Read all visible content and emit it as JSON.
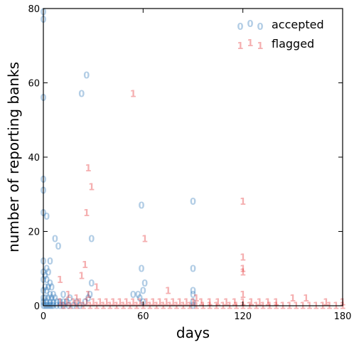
{
  "chart_data": {
    "type": "scatter",
    "xlabel": "days",
    "ylabel": "number of reporting banks",
    "xlim": [
      0,
      180
    ],
    "ylim": [
      0,
      80
    ],
    "xticks": [
      "0",
      "60",
      "120",
      "180"
    ],
    "yticks": [
      "0",
      "20",
      "40",
      "60",
      "80"
    ],
    "grid": false,
    "legend_position": "top-right",
    "series": [
      {
        "name": "accepted",
        "marker": "0",
        "color": "#2171b5",
        "points": [
          [
            0,
            79
          ],
          [
            0,
            77
          ],
          [
            0,
            56
          ],
          [
            0,
            34
          ],
          [
            0,
            31
          ],
          [
            0,
            25
          ],
          [
            2,
            24
          ],
          [
            26,
            62
          ],
          [
            23,
            57
          ],
          [
            59,
            27
          ],
          [
            90,
            28
          ],
          [
            7,
            18
          ],
          [
            9,
            16
          ],
          [
            29,
            18
          ],
          [
            0,
            12
          ],
          [
            2,
            10
          ],
          [
            4,
            12
          ],
          [
            0,
            9
          ],
          [
            1,
            8
          ],
          [
            3,
            9
          ],
          [
            0,
            7
          ],
          [
            2,
            7
          ],
          [
            4,
            6
          ],
          [
            1,
            5
          ],
          [
            3,
            5
          ],
          [
            5,
            5
          ],
          [
            0,
            4
          ],
          [
            2,
            4
          ],
          [
            4,
            3
          ],
          [
            6,
            3
          ],
          [
            0,
            2
          ],
          [
            1,
            2
          ],
          [
            3,
            2
          ],
          [
            5,
            2
          ],
          [
            7,
            2
          ],
          [
            0,
            1
          ],
          [
            2,
            1
          ],
          [
            4,
            1
          ],
          [
            6,
            1
          ],
          [
            8,
            1
          ],
          [
            10,
            1
          ],
          [
            12,
            1
          ],
          [
            14,
            1
          ],
          [
            0,
            0
          ],
          [
            1,
            0
          ],
          [
            2,
            0
          ],
          [
            3,
            0
          ],
          [
            4,
            0
          ],
          [
            5,
            0
          ],
          [
            6,
            0
          ],
          [
            8,
            0
          ],
          [
            10,
            0
          ],
          [
            12,
            0
          ],
          [
            15,
            0
          ],
          [
            18,
            0
          ],
          [
            22,
            0
          ],
          [
            12,
            3
          ],
          [
            16,
            2
          ],
          [
            20,
            1
          ],
          [
            29,
            6
          ],
          [
            28,
            3
          ],
          [
            27,
            2
          ],
          [
            25,
            1
          ],
          [
            59,
            10
          ],
          [
            61,
            6
          ],
          [
            60,
            4
          ],
          [
            57,
            3
          ],
          [
            54,
            3
          ],
          [
            58,
            2
          ],
          [
            60,
            1
          ],
          [
            90,
            10
          ],
          [
            90,
            4
          ],
          [
            90,
            3
          ],
          [
            90,
            1
          ],
          [
            90,
            0
          ]
        ]
      },
      {
        "name": "flagged",
        "marker": "1",
        "color": "#e31a1c",
        "points": [
          [
            54,
            57
          ],
          [
            27,
            37
          ],
          [
            29,
            32
          ],
          [
            26,
            25
          ],
          [
            120,
            28
          ],
          [
            61,
            18
          ],
          [
            120,
            13
          ],
          [
            120,
            10
          ],
          [
            120,
            9
          ],
          [
            25,
            11
          ],
          [
            23,
            8
          ],
          [
            10,
            7
          ],
          [
            32,
            5
          ],
          [
            27,
            3
          ],
          [
            15,
            3
          ],
          [
            20,
            2
          ],
          [
            75,
            4
          ],
          [
            92,
            2
          ],
          [
            120,
            3
          ],
          [
            10,
            1
          ],
          [
            14,
            1
          ],
          [
            18,
            1
          ],
          [
            22,
            1
          ],
          [
            26,
            1
          ],
          [
            30,
            1
          ],
          [
            34,
            1
          ],
          [
            38,
            1
          ],
          [
            42,
            1
          ],
          [
            46,
            1
          ],
          [
            50,
            1
          ],
          [
            54,
            1
          ],
          [
            58,
            1
          ],
          [
            62,
            1
          ],
          [
            66,
            1
          ],
          [
            70,
            1
          ],
          [
            74,
            1
          ],
          [
            78,
            1
          ],
          [
            82,
            1
          ],
          [
            86,
            1
          ],
          [
            90,
            1
          ],
          [
            95,
            1
          ],
          [
            100,
            1
          ],
          [
            105,
            1
          ],
          [
            110,
            1
          ],
          [
            115,
            1
          ],
          [
            120,
            1
          ],
          [
            125,
            1
          ],
          [
            130,
            1
          ],
          [
            135,
            1
          ],
          [
            140,
            1
          ],
          [
            150,
            2
          ],
          [
            158,
            2
          ],
          [
            170,
            1
          ],
          [
            180,
            1
          ],
          [
            12,
            0
          ],
          [
            16,
            0
          ],
          [
            20,
            0
          ],
          [
            24,
            0
          ],
          [
            28,
            0
          ],
          [
            32,
            0
          ],
          [
            36,
            0
          ],
          [
            40,
            0
          ],
          [
            44,
            0
          ],
          [
            48,
            0
          ],
          [
            52,
            0
          ],
          [
            56,
            0
          ],
          [
            60,
            0
          ],
          [
            64,
            0
          ],
          [
            68,
            0
          ],
          [
            72,
            0
          ],
          [
            76,
            0
          ],
          [
            80,
            0
          ],
          [
            84,
            0
          ],
          [
            88,
            0
          ],
          [
            92,
            0
          ],
          [
            96,
            0
          ],
          [
            100,
            0
          ],
          [
            104,
            0
          ],
          [
            108,
            0
          ],
          [
            112,
            0
          ],
          [
            116,
            0
          ],
          [
            120,
            0
          ],
          [
            124,
            0
          ],
          [
            128,
            0
          ],
          [
            132,
            0
          ],
          [
            136,
            0
          ],
          [
            140,
            0
          ],
          [
            144,
            0
          ],
          [
            148,
            0
          ],
          [
            152,
            0
          ],
          [
            156,
            0
          ],
          [
            160,
            0
          ],
          [
            164,
            0
          ],
          [
            168,
            0
          ],
          [
            172,
            0
          ],
          [
            176,
            0
          ],
          [
            180,
            0
          ]
        ]
      }
    ]
  }
}
